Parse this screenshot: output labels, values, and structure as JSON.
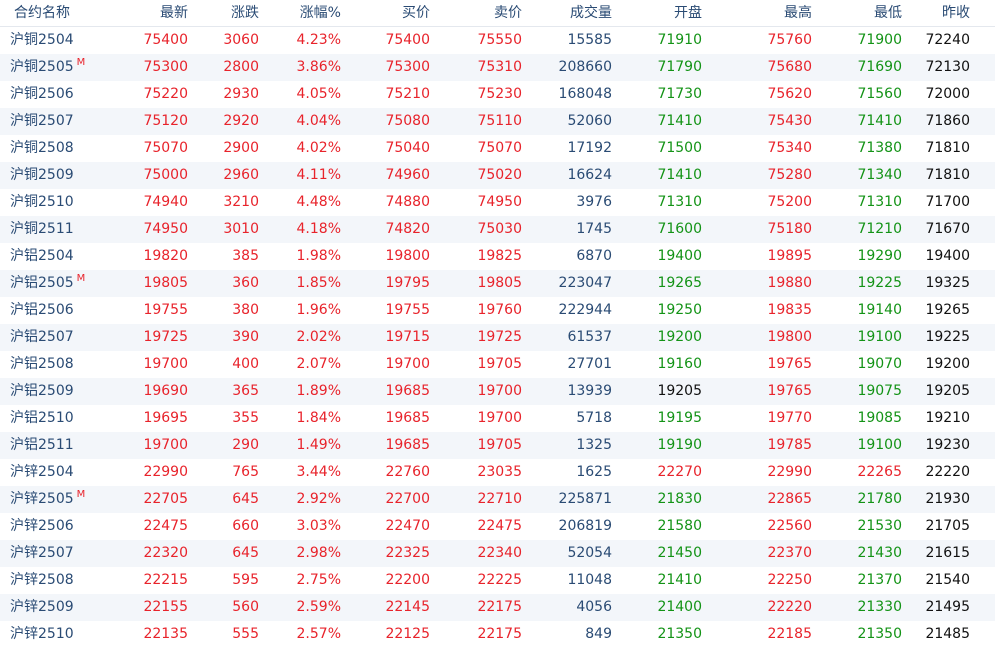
{
  "colors": {
    "up": "#e8232b",
    "down": "#139316",
    "volume": "#2a4b74",
    "neutral": "#111111",
    "name": "#2a4b74"
  },
  "header": {
    "name": "合约名称",
    "last": "最新",
    "change": "涨跌",
    "pct": "涨幅%",
    "bid": "买价",
    "ask": "卖价",
    "volume": "成交量",
    "open": "开盘",
    "high": "最高",
    "low": "最低",
    "prev": "昨收"
  },
  "rows": [
    {
      "name": "沪铜2504",
      "main": "",
      "last": "75400",
      "change": "3060",
      "pct": "4.23%",
      "bid": "75400",
      "ask": "75550",
      "volume": "15585",
      "open": "71910",
      "high": "75760",
      "low": "71900",
      "prev": "72240",
      "bid_dir": "up",
      "ask_dir": "up",
      "open_dir": "down",
      "high_dir": "up",
      "low_dir": "down"
    },
    {
      "name": "沪铜2505",
      "main": "M",
      "last": "75300",
      "change": "2800",
      "pct": "3.86%",
      "bid": "75300",
      "ask": "75310",
      "volume": "208660",
      "open": "71790",
      "high": "75680",
      "low": "71690",
      "prev": "72130",
      "bid_dir": "up",
      "ask_dir": "up",
      "open_dir": "down",
      "high_dir": "up",
      "low_dir": "down"
    },
    {
      "name": "沪铜2506",
      "main": "",
      "last": "75220",
      "change": "2930",
      "pct": "4.05%",
      "bid": "75210",
      "ask": "75230",
      "volume": "168048",
      "open": "71730",
      "high": "75620",
      "low": "71560",
      "prev": "72000",
      "bid_dir": "up",
      "ask_dir": "up",
      "open_dir": "down",
      "high_dir": "up",
      "low_dir": "down"
    },
    {
      "name": "沪铜2507",
      "main": "",
      "last": "75120",
      "change": "2920",
      "pct": "4.04%",
      "bid": "75080",
      "ask": "75110",
      "volume": "52060",
      "open": "71410",
      "high": "75430",
      "low": "71410",
      "prev": "71860",
      "bid_dir": "up",
      "ask_dir": "up",
      "open_dir": "down",
      "high_dir": "up",
      "low_dir": "down"
    },
    {
      "name": "沪铜2508",
      "main": "",
      "last": "75070",
      "change": "2900",
      "pct": "4.02%",
      "bid": "75040",
      "ask": "75070",
      "volume": "17192",
      "open": "71500",
      "high": "75340",
      "low": "71380",
      "prev": "71810",
      "bid_dir": "up",
      "ask_dir": "up",
      "open_dir": "down",
      "high_dir": "up",
      "low_dir": "down"
    },
    {
      "name": "沪铜2509",
      "main": "",
      "last": "75000",
      "change": "2960",
      "pct": "4.11%",
      "bid": "74960",
      "ask": "75020",
      "volume": "16624",
      "open": "71410",
      "high": "75280",
      "low": "71340",
      "prev": "71810",
      "bid_dir": "up",
      "ask_dir": "up",
      "open_dir": "down",
      "high_dir": "up",
      "low_dir": "down"
    },
    {
      "name": "沪铜2510",
      "main": "",
      "last": "74940",
      "change": "3210",
      "pct": "4.48%",
      "bid": "74880",
      "ask": "74950",
      "volume": "3976",
      "open": "71310",
      "high": "75200",
      "low": "71310",
      "prev": "71700",
      "bid_dir": "up",
      "ask_dir": "up",
      "open_dir": "down",
      "high_dir": "up",
      "low_dir": "down"
    },
    {
      "name": "沪铜2511",
      "main": "",
      "last": "74950",
      "change": "3010",
      "pct": "4.18%",
      "bid": "74820",
      "ask": "75030",
      "volume": "1745",
      "open": "71600",
      "high": "75180",
      "low": "71210",
      "prev": "71670",
      "bid_dir": "up",
      "ask_dir": "up",
      "open_dir": "down",
      "high_dir": "up",
      "low_dir": "down"
    },
    {
      "name": "沪铝2504",
      "main": "",
      "last": "19820",
      "change": "385",
      "pct": "1.98%",
      "bid": "19800",
      "ask": "19825",
      "volume": "6870",
      "open": "19400",
      "high": "19895",
      "low": "19290",
      "prev": "19400",
      "bid_dir": "up",
      "ask_dir": "up",
      "open_dir": "down",
      "high_dir": "up",
      "low_dir": "down"
    },
    {
      "name": "沪铝2505",
      "main": "M",
      "last": "19805",
      "change": "360",
      "pct": "1.85%",
      "bid": "19795",
      "ask": "19805",
      "volume": "223047",
      "open": "19265",
      "high": "19880",
      "low": "19225",
      "prev": "19325",
      "bid_dir": "up",
      "ask_dir": "up",
      "open_dir": "down",
      "high_dir": "up",
      "low_dir": "down"
    },
    {
      "name": "沪铝2506",
      "main": "",
      "last": "19755",
      "change": "380",
      "pct": "1.96%",
      "bid": "19755",
      "ask": "19760",
      "volume": "222944",
      "open": "19250",
      "high": "19835",
      "low": "19140",
      "prev": "19265",
      "bid_dir": "up",
      "ask_dir": "up",
      "open_dir": "down",
      "high_dir": "up",
      "low_dir": "down"
    },
    {
      "name": "沪铝2507",
      "main": "",
      "last": "19725",
      "change": "390",
      "pct": "2.02%",
      "bid": "19715",
      "ask": "19725",
      "volume": "61537",
      "open": "19200",
      "high": "19800",
      "low": "19100",
      "prev": "19225",
      "bid_dir": "up",
      "ask_dir": "up",
      "open_dir": "down",
      "high_dir": "up",
      "low_dir": "down"
    },
    {
      "name": "沪铝2508",
      "main": "",
      "last": "19700",
      "change": "400",
      "pct": "2.07%",
      "bid": "19700",
      "ask": "19705",
      "volume": "27701",
      "open": "19160",
      "high": "19765",
      "low": "19070",
      "prev": "19200",
      "bid_dir": "up",
      "ask_dir": "up",
      "open_dir": "down",
      "high_dir": "up",
      "low_dir": "down"
    },
    {
      "name": "沪铝2509",
      "main": "",
      "last": "19690",
      "change": "365",
      "pct": "1.89%",
      "bid": "19685",
      "ask": "19700",
      "volume": "13939",
      "open": "19205",
      "high": "19765",
      "low": "19075",
      "prev": "19205",
      "bid_dir": "up",
      "ask_dir": "up",
      "open_dir": "neutral",
      "high_dir": "up",
      "low_dir": "down"
    },
    {
      "name": "沪铝2510",
      "main": "",
      "last": "19695",
      "change": "355",
      "pct": "1.84%",
      "bid": "19685",
      "ask": "19700",
      "volume": "5718",
      "open": "19195",
      "high": "19770",
      "low": "19085",
      "prev": "19210",
      "bid_dir": "up",
      "ask_dir": "up",
      "open_dir": "down",
      "high_dir": "up",
      "low_dir": "down"
    },
    {
      "name": "沪铝2511",
      "main": "",
      "last": "19700",
      "change": "290",
      "pct": "1.49%",
      "bid": "19685",
      "ask": "19705",
      "volume": "1325",
      "open": "19190",
      "high": "19785",
      "low": "19100",
      "prev": "19230",
      "bid_dir": "up",
      "ask_dir": "up",
      "open_dir": "down",
      "high_dir": "up",
      "low_dir": "down"
    },
    {
      "name": "沪锌2504",
      "main": "",
      "last": "22990",
      "change": "765",
      "pct": "3.44%",
      "bid": "22760",
      "ask": "23035",
      "volume": "1625",
      "open": "22270",
      "high": "22990",
      "low": "22265",
      "prev": "22220",
      "bid_dir": "up",
      "ask_dir": "up",
      "open_dir": "up",
      "high_dir": "up",
      "low_dir": "up"
    },
    {
      "name": "沪锌2505",
      "main": "M",
      "last": "22705",
      "change": "645",
      "pct": "2.92%",
      "bid": "22700",
      "ask": "22710",
      "volume": "225871",
      "open": "21830",
      "high": "22865",
      "low": "21780",
      "prev": "21930",
      "bid_dir": "up",
      "ask_dir": "up",
      "open_dir": "down",
      "high_dir": "up",
      "low_dir": "down"
    },
    {
      "name": "沪锌2506",
      "main": "",
      "last": "22475",
      "change": "660",
      "pct": "3.03%",
      "bid": "22470",
      "ask": "22475",
      "volume": "206819",
      "open": "21580",
      "high": "22560",
      "low": "21530",
      "prev": "21705",
      "bid_dir": "up",
      "ask_dir": "up",
      "open_dir": "down",
      "high_dir": "up",
      "low_dir": "down"
    },
    {
      "name": "沪锌2507",
      "main": "",
      "last": "22320",
      "change": "645",
      "pct": "2.98%",
      "bid": "22325",
      "ask": "22340",
      "volume": "52054",
      "open": "21450",
      "high": "22370",
      "low": "21430",
      "prev": "21615",
      "bid_dir": "up",
      "ask_dir": "up",
      "open_dir": "down",
      "high_dir": "up",
      "low_dir": "down"
    },
    {
      "name": "沪锌2508",
      "main": "",
      "last": "22215",
      "change": "595",
      "pct": "2.75%",
      "bid": "22200",
      "ask": "22225",
      "volume": "11048",
      "open": "21410",
      "high": "22250",
      "low": "21370",
      "prev": "21540",
      "bid_dir": "up",
      "ask_dir": "up",
      "open_dir": "down",
      "high_dir": "up",
      "low_dir": "down"
    },
    {
      "name": "沪锌2509",
      "main": "",
      "last": "22155",
      "change": "560",
      "pct": "2.59%",
      "bid": "22145",
      "ask": "22175",
      "volume": "4056",
      "open": "21400",
      "high": "22220",
      "low": "21330",
      "prev": "21495",
      "bid_dir": "up",
      "ask_dir": "up",
      "open_dir": "down",
      "high_dir": "up",
      "low_dir": "down"
    },
    {
      "name": "沪锌2510",
      "main": "",
      "last": "22135",
      "change": "555",
      "pct": "2.57%",
      "bid": "22125",
      "ask": "22175",
      "volume": "849",
      "open": "21350",
      "high": "22185",
      "low": "21350",
      "prev": "21485",
      "bid_dir": "up",
      "ask_dir": "up",
      "open_dir": "down",
      "high_dir": "up",
      "low_dir": "down"
    }
  ]
}
